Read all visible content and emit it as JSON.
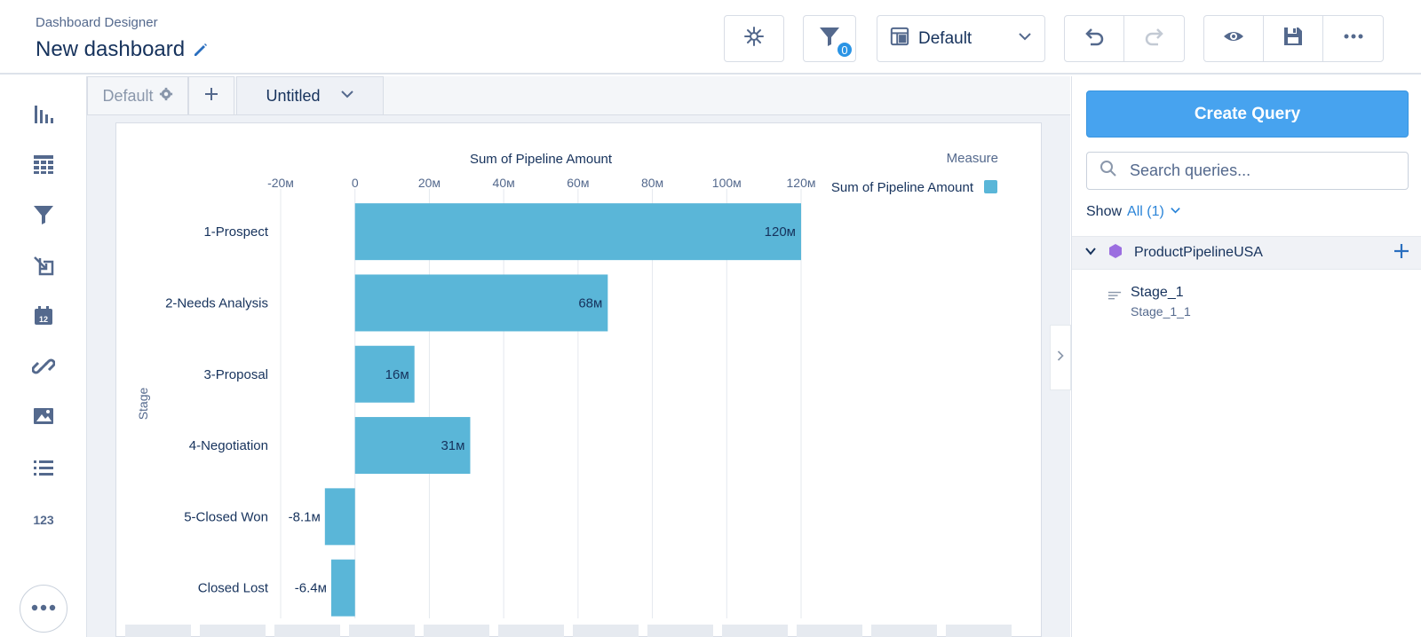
{
  "header": {
    "app_name": "Dashboard Designer",
    "title": "New dashboard",
    "filter_count": "0",
    "layout_label": "Default",
    "icons": [
      "edit-icon",
      "sparkle-icon",
      "filter-icon",
      "layout-icon",
      "undo-icon",
      "redo-icon",
      "preview-icon",
      "save-icon",
      "more-icon"
    ]
  },
  "sidebar": {
    "tools": [
      "chart-icon",
      "table-icon",
      "filter-icon",
      "toggle-icon",
      "date-icon",
      "link-icon",
      "image-icon",
      "list-icon",
      "number-icon",
      "more-icon"
    ],
    "number_label": "123"
  },
  "pages": {
    "default_label": "Default",
    "untitled_label": "Untitled"
  },
  "chart_data": {
    "type": "bar",
    "orientation": "horizontal",
    "title": "Sum of Pipeline Amount",
    "ylabel": "Stage",
    "legend_title": "Measure",
    "legend_position": "top-right",
    "categories": [
      "1-Prospect",
      "2-Needs Analysis",
      "3-Proposal",
      "4-Negotiation",
      "5-Closed Won",
      "Closed Lost"
    ],
    "series": [
      {
        "name": "Sum of Pipeline Amount",
        "values": [
          120,
          68,
          16,
          31,
          -8.1,
          -6.4
        ],
        "color": "#5ab6d8"
      }
    ],
    "data_labels": [
      "120м",
      "68м",
      "16м",
      "31м",
      "-8.1м",
      "-6.4м"
    ],
    "xlim": [
      -20,
      120
    ],
    "ticks": [
      -20,
      0,
      20,
      40,
      60,
      80,
      100,
      120
    ],
    "tick_labels": [
      "-20м",
      "0",
      "20м",
      "40м",
      "60м",
      "80м",
      "100м",
      "120м"
    ],
    "grid": true
  },
  "panel": {
    "create_query_label": "Create Query",
    "search_placeholder": "Search queries...",
    "show_label": "Show",
    "show_value": "All (1)",
    "dataset_name": "ProductPipelineUSA",
    "field_name": "Stage_1",
    "field_api_name": "Stage_1_1",
    "accent_color": "#47a3ef"
  }
}
